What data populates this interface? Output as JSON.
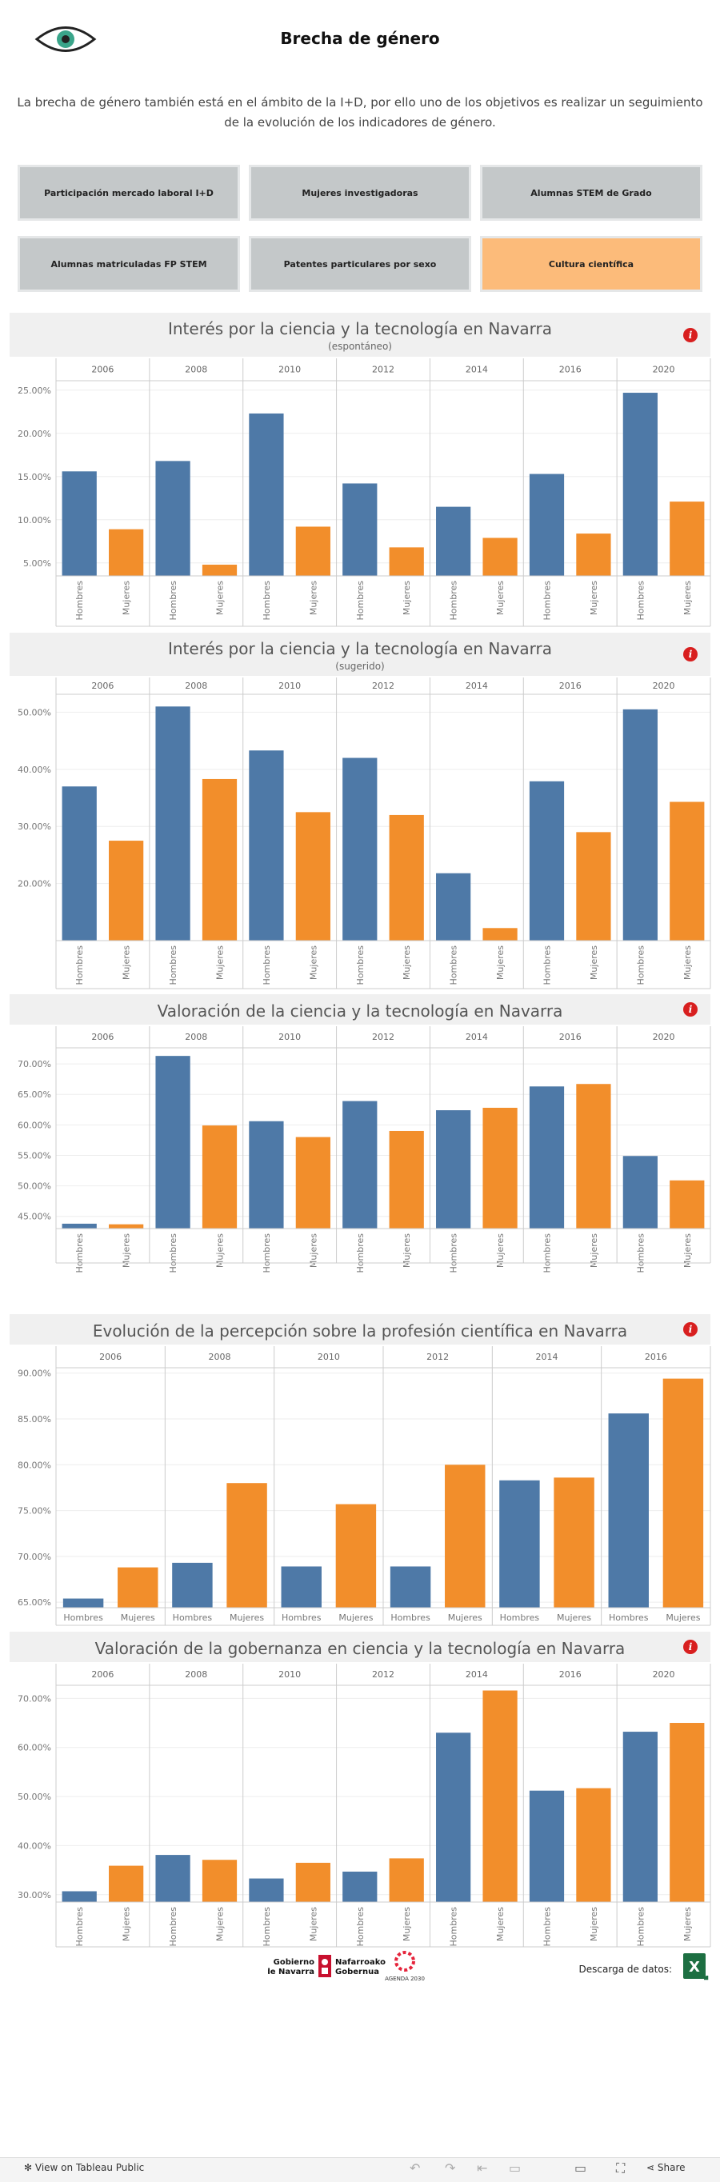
{
  "header": {
    "title": "Brecha de género"
  },
  "intro": "La brecha de género también está en el ámbito de la I+D, por ello uno de los objetivos es realizar un seguimiento de la evolución de los indicadores de género.",
  "nav": [
    {
      "label": "Participación mercado laboral I+D",
      "active": false
    },
    {
      "label": "Mujeres investigadoras",
      "active": false
    },
    {
      "label": "Alumnas STEM de Grado",
      "active": false
    },
    {
      "label": "Alumnas matriculadas FP STEM",
      "active": false
    },
    {
      "label": "Patentes particulares por sexo",
      "active": false
    },
    {
      "label": "Cultura científica",
      "active": true
    }
  ],
  "colors": {
    "hombres": "#4e79a7",
    "mujeres": "#f28e2b"
  },
  "chart_data": [
    {
      "type": "bar",
      "title": "Interés por la ciencia y la tecnología en Navarra",
      "subtitle": "(espontáneo)",
      "categories": [
        "2006",
        "2008",
        "2010",
        "2012",
        "2014",
        "2016",
        "2020"
      ],
      "series": [
        {
          "name": "Hombres",
          "values": [
            15.6,
            16.8,
            22.3,
            14.2,
            11.5,
            15.3,
            24.7
          ]
        },
        {
          "name": "Mujeres",
          "values": [
            8.9,
            4.8,
            9.2,
            6.8,
            7.9,
            8.4,
            12.1
          ]
        }
      ],
      "ylim": [
        3.5,
        26
      ],
      "yticks": [
        5,
        10,
        15,
        20,
        25
      ],
      "ytick_labels": [
        "5.00%",
        "10.00%",
        "15.00%",
        "20.00%",
        "25.00%"
      ],
      "label_rotated": true
    },
    {
      "type": "bar",
      "title": "Interés por la ciencia y la tecnología en Navarra",
      "subtitle": "(sugerido)",
      "categories": [
        "2006",
        "2008",
        "2010",
        "2012",
        "2014",
        "2016",
        "2020"
      ],
      "series": [
        {
          "name": "Hombres",
          "values": [
            37.0,
            51.0,
            43.3,
            42.0,
            21.8,
            37.9,
            50.5
          ]
        },
        {
          "name": "Mujeres",
          "values": [
            27.5,
            38.3,
            32.5,
            32.0,
            12.2,
            29.0,
            34.3
          ]
        }
      ],
      "ylim": [
        10,
        53
      ],
      "yticks": [
        20,
        30,
        40,
        50
      ],
      "ytick_labels": [
        "20.00%",
        "30.00%",
        "40.00%",
        "50.00%"
      ],
      "label_rotated": true
    },
    {
      "type": "bar",
      "title": "Valoración de la ciencia y la tecnología en Navarra",
      "subtitle": "",
      "categories": [
        "2006",
        "2008",
        "2010",
        "2012",
        "2014",
        "2016",
        "2020"
      ],
      "series": [
        {
          "name": "Hombres",
          "values": [
            43.8,
            71.3,
            60.6,
            63.9,
            62.4,
            66.3,
            54.9
          ]
        },
        {
          "name": "Mujeres",
          "values": [
            43.7,
            59.9,
            58.0,
            59.0,
            62.8,
            66.7,
            50.9
          ]
        }
      ],
      "ylim": [
        43,
        72.5
      ],
      "yticks": [
        45,
        50,
        55,
        60,
        65,
        70
      ],
      "ytick_labels": [
        "45.00%",
        "50.00%",
        "55.00%",
        "60.00%",
        "65.00%",
        "70.00%"
      ],
      "label_rotated": true
    },
    {
      "type": "bar",
      "title": "Evolución de la percepción sobre la profesión científica en Navarra",
      "subtitle": "",
      "categories": [
        "2006",
        "2008",
        "2010",
        "2012",
        "2014",
        "2016"
      ],
      "series": [
        {
          "name": "Hombres",
          "values": [
            65.4,
            69.3,
            68.9,
            68.9,
            78.3,
            85.6
          ]
        },
        {
          "name": "Mujeres",
          "values": [
            68.8,
            78.0,
            75.7,
            80.0,
            78.6,
            89.4
          ]
        }
      ],
      "ylim": [
        64.4,
        90.5
      ],
      "yticks": [
        65,
        70,
        75,
        80,
        85,
        90
      ],
      "ytick_labels": [
        "65.00%",
        "70.00%",
        "75.00%",
        "80.00%",
        "85.00%",
        "90.00%"
      ],
      "label_rotated": false
    },
    {
      "type": "bar",
      "title": "Valoración de la gobernanza en ciencia y la tecnología en Navarra",
      "subtitle": "",
      "categories": [
        "2006",
        "2008",
        "2010",
        "2012",
        "2014",
        "2016",
        "2020"
      ],
      "series": [
        {
          "name": "Hombres",
          "values": [
            30.7,
            38.1,
            33.3,
            34.7,
            63.0,
            51.2,
            63.2
          ]
        },
        {
          "name": "Mujeres",
          "values": [
            35.9,
            37.1,
            36.5,
            37.4,
            71.6,
            51.7,
            65.0
          ]
        }
      ],
      "ylim": [
        28.5,
        72.5
      ],
      "yticks": [
        30,
        40,
        50,
        60,
        70
      ],
      "ytick_labels": [
        "30.00%",
        "40.00%",
        "50.00%",
        "60.00%",
        "70.00%"
      ],
      "label_rotated": true
    }
  ],
  "footer": {
    "gov_name_es": "Gobierno de Navarra",
    "gov_name_eu": "Nafarroako Gobernua",
    "agenda": "AGENDA 2030",
    "download_label": "Descarga de datos:",
    "excel_letter": "X"
  },
  "toolbar": {
    "view_label": "View on Tableau Public",
    "share_label": "Share"
  }
}
